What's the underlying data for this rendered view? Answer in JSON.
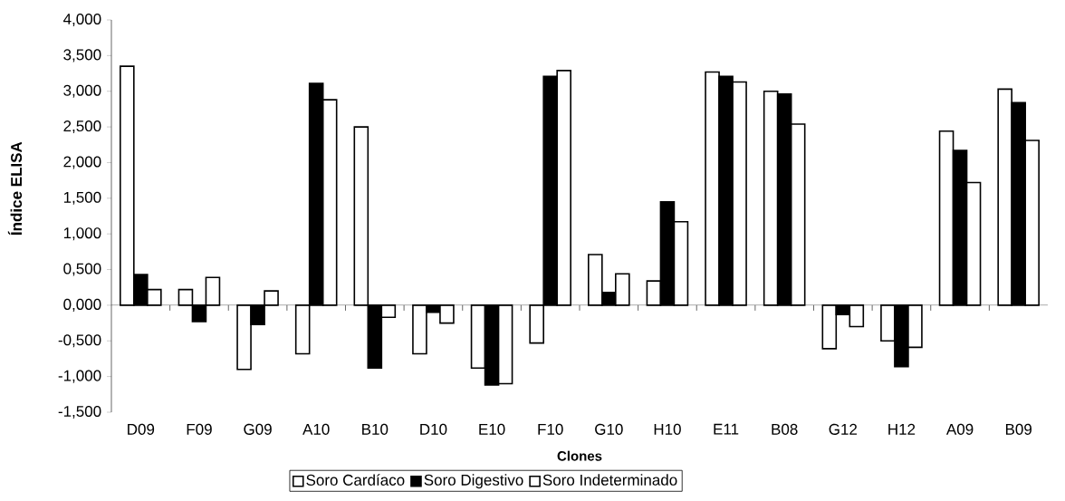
{
  "chart_data": {
    "type": "bar",
    "xlabel": "Clones",
    "ylabel": "Índice ELISA",
    "categories": [
      "D09",
      "F09",
      "G09",
      "A10",
      "B10",
      "D10",
      "E10",
      "F10",
      "G10",
      "H10",
      "E11",
      "B08",
      "G12",
      "H12",
      "A09",
      "B09"
    ],
    "series": [
      {
        "name": "Soro Cardíaco",
        "color": "#ffffff",
        "values": [
          3.35,
          0.22,
          -0.9,
          -0.68,
          2.5,
          -0.68,
          -0.88,
          -0.53,
          0.71,
          0.34,
          3.27,
          3.0,
          -0.61,
          -0.5,
          2.44,
          3.03
        ]
      },
      {
        "name": "Soro Digestivo",
        "color": "#000000",
        "values": [
          0.43,
          -0.23,
          -0.27,
          3.11,
          -0.88,
          -0.1,
          -1.12,
          3.21,
          0.18,
          1.45,
          3.21,
          2.96,
          -0.13,
          -0.86,
          2.17,
          2.84
        ]
      },
      {
        "name": "Soro Indeterminado",
        "color": "#ffffff",
        "values": [
          0.22,
          0.39,
          0.2,
          2.88,
          -0.17,
          -0.25,
          -1.1,
          3.29,
          0.44,
          1.17,
          3.13,
          2.54,
          -0.3,
          -0.59,
          1.72,
          2.31
        ]
      }
    ],
    "ylim": [
      -1.5,
      4
    ],
    "yticks": [
      {
        "value": -1.5,
        "label": "-1,500"
      },
      {
        "value": -1,
        "label": "-1,000"
      },
      {
        "value": -0.5,
        "label": "-0,500"
      },
      {
        "value": 0,
        "label": "0,000"
      },
      {
        "value": 0.5,
        "label": "0,500"
      },
      {
        "value": 1,
        "label": "1,000"
      },
      {
        "value": 1.5,
        "label": "1,500"
      },
      {
        "value": 2,
        "label": "2,000"
      },
      {
        "value": 2.5,
        "label": "2,500"
      },
      {
        "value": 3,
        "label": "3,000"
      },
      {
        "value": 3.5,
        "label": "3,500"
      },
      {
        "value": 4,
        "label": "4,000"
      }
    ],
    "legend": "bottom"
  }
}
